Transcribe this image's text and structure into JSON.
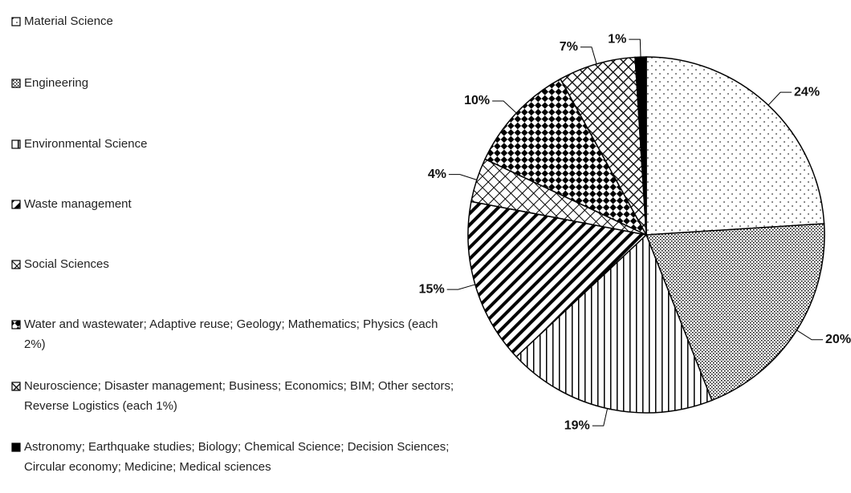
{
  "chart_data": {
    "type": "pie",
    "categories": [
      "Material Science",
      "Engineering",
      "Environmental Science",
      "Waste management",
      "Social Sciences",
      "Water and wastewater; Adaptive reuse; Geology; Mathematics; Physics (each 2%)",
      "Neuroscience; Disaster management; Business; Economics; BIM; Other sectors; Reverse Logistics (each 1%)",
      "Astronomy; Earthquake studies; Biology; Chemical Science; Decision Sciences; Circular economy; Medicine; Medical sciences"
    ],
    "values": [
      24,
      20,
      19,
      15,
      4,
      10,
      7,
      1
    ],
    "value_labels": [
      "24%",
      "20%",
      "19%",
      "15%",
      "4%",
      "10%",
      "7%",
      "1%"
    ]
  }
}
